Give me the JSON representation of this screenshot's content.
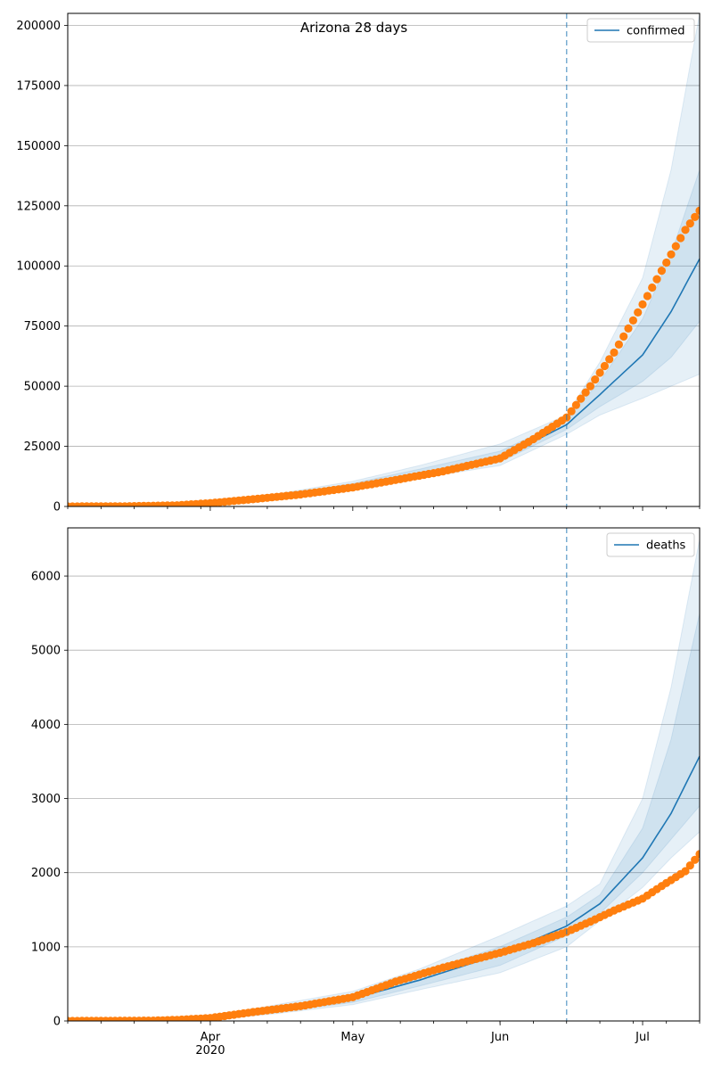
{
  "title": "Arizona 28 days",
  "colors": {
    "model": "#1f77b4",
    "observed": "#ff7f0e",
    "band": "#1f77b4",
    "grid": "#b0b0b0",
    "cutoff": "#1f77b4"
  },
  "chart_data": [
    {
      "type": "line",
      "legend": "confirmed",
      "legend_position": "top-right",
      "grid": true,
      "x_range": [
        "2020-03-02",
        "2020-07-13"
      ],
      "ylim": [
        0,
        205000
      ],
      "yticks": [
        0,
        25000,
        50000,
        75000,
        100000,
        125000,
        150000,
        175000,
        200000
      ],
      "xticks": [
        {
          "date": "2020-04-01",
          "label": "Apr",
          "sublabel": "2020"
        },
        {
          "date": "2020-05-01",
          "label": "May",
          "sublabel": ""
        },
        {
          "date": "2020-06-01",
          "label": "Jun",
          "sublabel": ""
        },
        {
          "date": "2020-07-01",
          "label": "Jul",
          "sublabel": ""
        }
      ],
      "forecast_start": "2020-06-15",
      "model": {
        "dates": [
          "2020-03-02",
          "2020-03-20",
          "2020-04-01",
          "2020-04-15",
          "2020-05-01",
          "2020-05-15",
          "2020-06-01",
          "2020-06-15",
          "2020-06-22",
          "2020-07-01",
          "2020-07-07",
          "2020-07-13"
        ],
        "median": [
          0,
          300,
          1600,
          3800,
          8500,
          13800,
          20000,
          34000,
          46500,
          63000,
          81000,
          103000
        ],
        "bands": [
          {
            "lo": [
              0,
              100,
              1000,
              2800,
              7200,
              11800,
              17000,
              30000,
              38000,
              45000,
              50000,
              55000
            ],
            "hi": [
              0,
              600,
              2300,
              5200,
              10500,
              17000,
              26000,
              38000,
              60000,
              95000,
              140000,
              205000
            ]
          },
          {
            "lo": [
              0,
              180,
              1200,
              3200,
              7800,
              12500,
              18500,
              32000,
              41500,
              52000,
              62000,
              77000
            ],
            "hi": [
              0,
              450,
              2000,
              4600,
              9600,
              15500,
              23000,
              36000,
              52000,
              78000,
              105000,
              140000
            ]
          }
        ]
      },
      "observed": {
        "dates": [
          "2020-03-02",
          "2020-03-15",
          "2020-03-25",
          "2020-04-01",
          "2020-04-10",
          "2020-04-20",
          "2020-05-01",
          "2020-05-10",
          "2020-05-20",
          "2020-06-01",
          "2020-06-08",
          "2020-06-15",
          "2020-06-20",
          "2020-06-25",
          "2020-07-01",
          "2020-07-05",
          "2020-07-10",
          "2020-07-13"
        ],
        "values": [
          0,
          100,
          500,
          1400,
          3000,
          5000,
          7900,
          11000,
          14600,
          20000,
          28000,
          37000,
          50000,
          64000,
          84000,
          98000,
          115000,
          123000
        ]
      }
    },
    {
      "type": "line",
      "legend": "deaths",
      "legend_position": "top-right",
      "grid": true,
      "x_range": [
        "2020-03-02",
        "2020-07-13"
      ],
      "ylim": [
        0,
        6650
      ],
      "yticks": [
        0,
        1000,
        2000,
        3000,
        4000,
        5000,
        6000
      ],
      "xticks": [
        {
          "date": "2020-04-01",
          "label": "Apr",
          "sublabel": "2020"
        },
        {
          "date": "2020-05-01",
          "label": "May",
          "sublabel": ""
        },
        {
          "date": "2020-06-01",
          "label": "Jun",
          "sublabel": ""
        },
        {
          "date": "2020-07-01",
          "label": "Jul",
          "sublabel": ""
        }
      ],
      "forecast_start": "2020-06-15",
      "model": {
        "dates": [
          "2020-03-02",
          "2020-03-25",
          "2020-04-01",
          "2020-04-15",
          "2020-05-01",
          "2020-05-15",
          "2020-06-01",
          "2020-06-15",
          "2020-06-22",
          "2020-07-01",
          "2020-07-07",
          "2020-07-13"
        ],
        "median": [
          0,
          10,
          30,
          150,
          300,
          550,
          900,
          1280,
          1580,
          2200,
          2800,
          3570
        ],
        "bands": [
          {
            "lo": [
              0,
              0,
              15,
              100,
              220,
              420,
              650,
              1000,
              1350,
              1800,
              2200,
              2550
            ],
            "hi": [
              0,
              30,
              60,
              220,
              400,
              700,
              1150,
              1550,
              1850,
              3000,
              4500,
              6500
            ]
          },
          {
            "lo": [
              0,
              5,
              20,
              120,
              250,
              470,
              750,
              1150,
              1450,
              2000,
              2450,
              2900
            ],
            "hi": [
              0,
              20,
              45,
              190,
              360,
              650,
              1000,
              1400,
              1700,
              2600,
              3800,
              5500
            ]
          }
        ]
      },
      "observed": {
        "dates": [
          "2020-03-02",
          "2020-03-20",
          "2020-03-25",
          "2020-04-01",
          "2020-04-10",
          "2020-04-20",
          "2020-05-01",
          "2020-05-10",
          "2020-05-20",
          "2020-06-01",
          "2020-06-08",
          "2020-06-15",
          "2020-06-20",
          "2020-06-25",
          "2020-07-01",
          "2020-07-05",
          "2020-07-10",
          "2020-07-13"
        ],
        "values": [
          0,
          5,
          15,
          40,
          120,
          200,
          320,
          530,
          720,
          920,
          1050,
          1200,
          1340,
          1490,
          1650,
          1820,
          2020,
          2250
        ]
      }
    }
  ]
}
